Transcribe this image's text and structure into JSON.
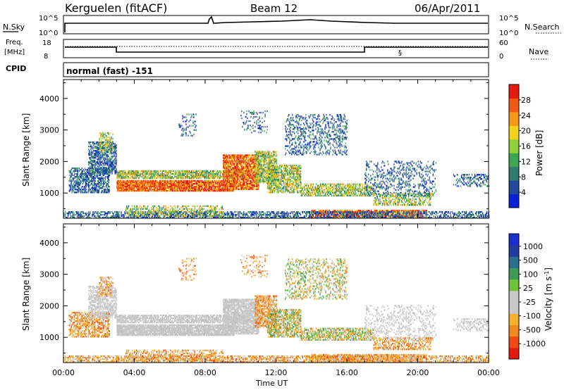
{
  "header": {
    "station": "Kerguelen (fitACF)",
    "beam": "Beam 12",
    "date": "06/Apr/2011"
  },
  "top_panels": {
    "nsky_label": "N.Sky",
    "nsky_ticks": [
      "10^5",
      "10^0"
    ],
    "nsearch_label": "N.Search",
    "nsearch_ticks": [
      "10^5",
      "10^0"
    ],
    "freq_label_1": "Freq.",
    "freq_label_2": "[MHz]",
    "freq_ticks": [
      "18",
      "8"
    ],
    "nave_label": "Nave",
    "nave_ticks": [
      "60",
      "0"
    ],
    "cpid_label": "CPID",
    "cpid_value": "normal (fast) -151"
  },
  "colors": {
    "power_scale": [
      "#0a1fd9",
      "#214a9c",
      "#2e7d6e",
      "#3ea653",
      "#8fd13a",
      "#f3d21a",
      "#f79a14",
      "#f05a12",
      "#e61b10"
    ],
    "velocity_scale": [
      "#e31a10",
      "#ee4a14",
      "#f18a1c",
      "#f3b02c",
      "#c8c8c8",
      "#c8c8c8",
      "#6fc23a",
      "#3e9a54",
      "#2d6e8f",
      "#223ba0",
      "#1a2fd0"
    ]
  },
  "chart_data": [
    {
      "type": "heatmap",
      "panel": "power",
      "ylabel": "Slant Range [km]",
      "y_ticks": [
        "1000",
        "2000",
        "3000",
        "4000"
      ],
      "ylim": [
        200,
        4600
      ],
      "xlim": [
        0,
        24
      ],
      "colorbar_label": "Power [dB]",
      "colorbar_ticks": [
        "4",
        "8",
        "12",
        "16",
        "20",
        "24",
        "28"
      ],
      "colorbar_range": [
        0,
        32
      ]
    },
    {
      "type": "heatmap",
      "panel": "velocity",
      "ylabel": "Slant Range [km]",
      "y_ticks": [
        "1000",
        "2000",
        "3000",
        "4000"
      ],
      "ylim": [
        200,
        4600
      ],
      "xlim": [
        0,
        24
      ],
      "xlabel": "Time UT",
      "x_ticks": [
        "00:00",
        "04:00",
        "08:00",
        "12:00",
        "16:00",
        "20:00",
        "00:00"
      ],
      "colorbar_label": "Velocity [m s",
      "colorbar_label_sup": "-1",
      "colorbar_label_end": "]",
      "colorbar_ticks": [
        "1000",
        "500",
        "100",
        "25",
        "-25",
        "-100",
        "-500",
        "-1000"
      ]
    }
  ]
}
